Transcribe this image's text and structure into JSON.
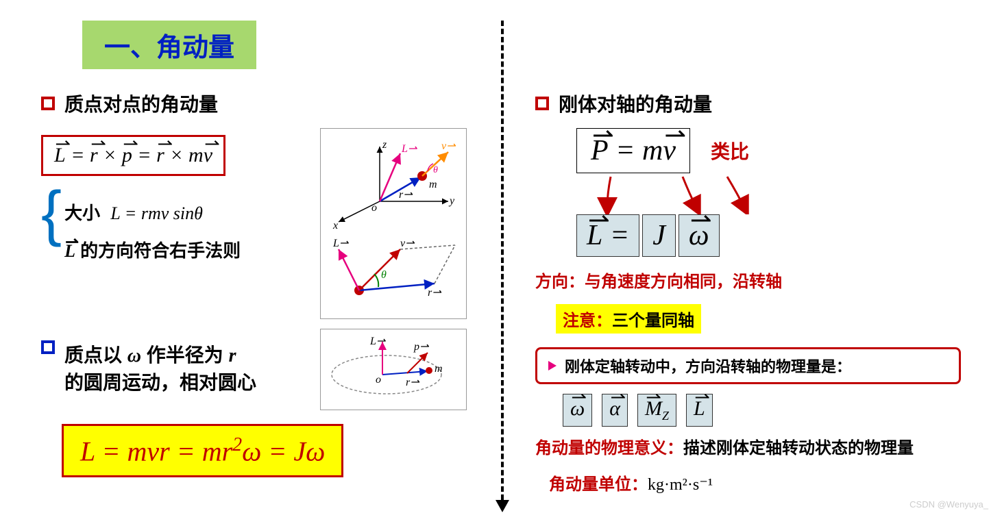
{
  "title": "一、角动量",
  "left": {
    "h1": "质点对点的角动量",
    "formula1_html": "<span class='vec'>L</span> = <span class='vec'>r</span> × <span class='vec'>p</span> = <span class='vec'>r</span> × m<span class='vec'>v</span>",
    "mag_label": "大小",
    "mag_formula": "L = rmv sinθ",
    "dir_text_html": "<span class='serif-i vec'>L</span> 的方向符合右手法则",
    "h2_line1_html": "质点以 <span class='serif-i'>ω</span> 作半径为 <span class='serif-i'>r</span>",
    "h2_line2": "的圆周运动，相对圆心",
    "formula2_html": "L = mvr = mr<sup style='font-size:0.7em'>2</sup>ω = Jω",
    "diagram1": {
      "colors": {
        "axis": "#000",
        "r": "#0020C2",
        "L": "#E6007E",
        "v": "#FF8C00",
        "mass": "#C00000",
        "dash": "#666"
      },
      "labels": {
        "x": "x",
        "y": "y",
        "z": "z",
        "o": "o",
        "r": "r",
        "L": "L",
        "v": "v",
        "m": "m",
        "theta": "θ"
      }
    },
    "diagram2": {
      "colors": {
        "L": "#E6007E",
        "v": "#C00000",
        "r": "#0020C2",
        "mass": "#C00000",
        "dash": "#666",
        "arc": "#008000"
      },
      "labels": {
        "L": "L",
        "v": "v",
        "r": "r",
        "theta": "θ"
      }
    },
    "diagram3": {
      "colors": {
        "ellipse": "#888",
        "L": "#E6007E",
        "p": "#C00000",
        "r": "#0020C2",
        "mass": "#C00000"
      },
      "labels": {
        "L": "L",
        "p": "p",
        "r": "r",
        "o": "o",
        "m": "m"
      }
    }
  },
  "right": {
    "h1": "刚体对轴的角动量",
    "analogy_label": "类比",
    "p_formula_html": "<span class='vec'>P</span> = m<span class='vec'>v</span>",
    "l_cells": [
      "L =",
      "J",
      "ω"
    ],
    "arrow_color": "#C00000",
    "dir_text": "方向：与角速度方向相同，沿转轴",
    "note_red": "注意：",
    "note_black": "三个量同轴",
    "callout": "刚体定轴转动中，方向沿转轴的物理量是：",
    "qty_cells": [
      "ω",
      "α",
      "M",
      "L"
    ],
    "qty_sub": "Z",
    "meaning_red": "角动量的物理意义：",
    "meaning_black": "描述刚体定轴转动状态的物理量",
    "unit_red": "角动量单位：",
    "unit_val": "kg·m²·s⁻¹"
  },
  "watermark": "CSDN @Wenyuya_"
}
